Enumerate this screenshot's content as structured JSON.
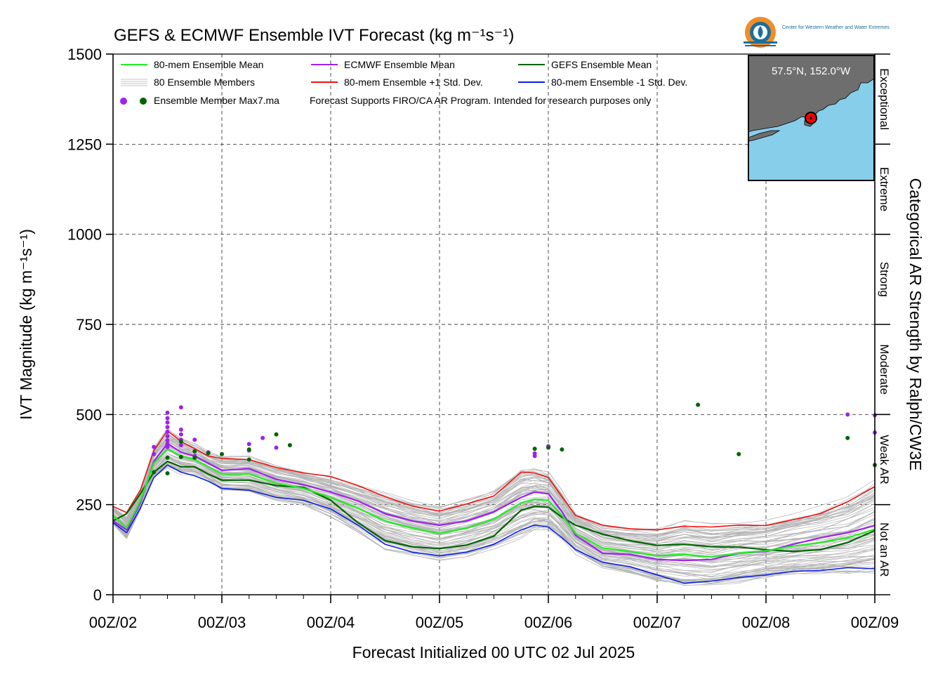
{
  "chart_data": {
    "type": "line",
    "title": "GEFS & ECMWF Ensemble IVT Forecast (kg m⁻¹s⁻¹)",
    "xlabel": "Forecast Initialized 00 UTC 02 Jul 2025",
    "ylabel": "IVT Magnitude (kg m⁻¹s⁻¹)",
    "right_label": "Categorical AR Strength by Ralph/CW3E",
    "x_unit": "days since 00Z/02",
    "xlim": [
      0,
      7
    ],
    "ylim": [
      0,
      1500
    ],
    "x_ticks": [
      0,
      1,
      2,
      3,
      4,
      5,
      6,
      7
    ],
    "x_tick_labels": [
      "00Z/02",
      "00Z/03",
      "00Z/04",
      "00Z/05",
      "00Z/06",
      "00Z/07",
      "00Z/08",
      "00Z/09"
    ],
    "y_ticks": [
      0,
      250,
      500,
      750,
      1000,
      1250,
      1500
    ],
    "y_tick_labels": [
      "0",
      "250",
      "500",
      "750",
      "1000",
      "1250",
      "1500"
    ],
    "grid": true,
    "categories": [
      {
        "label": "Not an AR",
        "range": [
          0,
          250
        ]
      },
      {
        "label": "Weak AR",
        "range": [
          250,
          500
        ]
      },
      {
        "label": "Moderate",
        "range": [
          500,
          750
        ]
      },
      {
        "label": "Strong",
        "range": [
          750,
          1000
        ]
      },
      {
        "label": "Extreme",
        "range": [
          1000,
          1250
        ]
      },
      {
        "label": "Exceptional",
        "range": [
          1250,
          1500
        ]
      }
    ],
    "legend": [
      {
        "label": "80-mem Ensemble Mean",
        "color": "#22ee22"
      },
      {
        "label": "ECMWF Ensemble Mean",
        "color": "#a020f0"
      },
      {
        "label": "GEFS Ensemble Mean",
        "color": "#006400"
      },
      {
        "label": "80 Ensemble Members",
        "color": "#b0b0b0"
      },
      {
        "label": "80-mem Ensemble +1 Std. Dev.",
        "color": "#ee1111"
      },
      {
        "label": "80-mem Ensemble -1 Std. Dev.",
        "color": "#0a1ee8"
      },
      {
        "label": "Ensemble Member Max7.ma",
        "color": "#a020f0"
      }
    ],
    "legend_note": "Forecast Supports FIRO/CA AR Program. Intended for research purposes only",
    "x": [
      0,
      0.125,
      0.25,
      0.375,
      0.5,
      0.625,
      0.75,
      0.875,
      1.0,
      1.25,
      1.5,
      1.75,
      2.0,
      2.25,
      2.5,
      2.75,
      3.0,
      3.25,
      3.5,
      3.75,
      3.875,
      4.0,
      4.125,
      4.25,
      4.5,
      4.75,
      5.0,
      5.25,
      5.5,
      5.75,
      6.0,
      6.25,
      6.5,
      6.75,
      7.0
    ],
    "series": [
      {
        "name": "80-mem Ensemble Mean",
        "color": "#22ee22",
        "width": 2.2,
        "values": [
          220,
          185,
          260,
          365,
          405,
          385,
          375,
          355,
          335,
          335,
          310,
          295,
          270,
          240,
          205,
          185,
          170,
          185,
          210,
          255,
          265,
          262,
          220,
          170,
          130,
          120,
          108,
          112,
          105,
          115,
          122,
          135,
          145,
          158,
          182
        ]
      },
      {
        "name": "ECMWF Ensemble Mean",
        "color": "#a020f0",
        "width": 2.2,
        "values": [
          205,
          180,
          255,
          370,
          420,
          395,
          385,
          365,
          345,
          350,
          320,
          305,
          285,
          260,
          225,
          205,
          193,
          205,
          230,
          270,
          285,
          280,
          230,
          165,
          115,
          112,
          98,
          95,
          98,
          115,
          120,
          140,
          158,
          172,
          192
        ]
      },
      {
        "name": "GEFS Ensemble Mean",
        "color": "#006400",
        "width": 2.2,
        "values": [
          205,
          225,
          280,
          340,
          370,
          355,
          355,
          335,
          318,
          318,
          303,
          298,
          262,
          200,
          150,
          133,
          128,
          138,
          163,
          235,
          245,
          243,
          215,
          193,
          168,
          150,
          137,
          140,
          133,
          132,
          125,
          120,
          125,
          145,
          178
        ]
      },
      {
        "name": "80-mem Ensemble +1 Std. Dev.",
        "color": "#ee1111",
        "width": 1.6,
        "values": [
          245,
          228,
          290,
          400,
          455,
          425,
          405,
          385,
          378,
          375,
          353,
          338,
          328,
          303,
          272,
          246,
          232,
          252,
          274,
          340,
          338,
          325,
          272,
          220,
          193,
          183,
          180,
          190,
          188,
          193,
          192,
          208,
          225,
          258,
          300
        ]
      },
      {
        "name": "80-mem Ensemble -1 Std. Dev.",
        "color": "#0a1ee8",
        "width": 1.6,
        "values": [
          200,
          172,
          240,
          325,
          360,
          340,
          330,
          315,
          295,
          290,
          270,
          262,
          238,
          193,
          140,
          118,
          108,
          118,
          140,
          180,
          193,
          188,
          158,
          125,
          90,
          78,
          55,
          32,
          38,
          48,
          55,
          65,
          67,
          75,
          72
        ]
      }
    ],
    "max_points": [
      {
        "color": "#a020f0",
        "x": 0.375,
        "y": 410
      },
      {
        "color": "#a020f0",
        "x": 0.375,
        "y": 390
      },
      {
        "color": "#a020f0",
        "x": 0.5,
        "y": 505
      },
      {
        "color": "#a020f0",
        "x": 0.5,
        "y": 490
      },
      {
        "color": "#a020f0",
        "x": 0.5,
        "y": 478
      },
      {
        "color": "#a020f0",
        "x": 0.5,
        "y": 465
      },
      {
        "color": "#a020f0",
        "x": 0.5,
        "y": 452
      },
      {
        "color": "#a020f0",
        "x": 0.5,
        "y": 440
      },
      {
        "color": "#a020f0",
        "x": 0.5,
        "y": 428
      },
      {
        "color": "#a020f0",
        "x": 0.5,
        "y": 418
      },
      {
        "color": "#a020f0",
        "x": 0.5,
        "y": 410
      },
      {
        "color": "#a020f0",
        "x": 0.625,
        "y": 520
      },
      {
        "color": "#a020f0",
        "x": 0.625,
        "y": 458
      },
      {
        "color": "#a020f0",
        "x": 0.625,
        "y": 445
      },
      {
        "color": "#a020f0",
        "x": 0.625,
        "y": 430
      },
      {
        "color": "#a020f0",
        "x": 0.625,
        "y": 415
      },
      {
        "color": "#a020f0",
        "x": 0.75,
        "y": 430
      },
      {
        "color": "#a020f0",
        "x": 0.75,
        "y": 385
      },
      {
        "color": "#a020f0",
        "x": 0.875,
        "y": 395
      },
      {
        "color": "#a020f0",
        "x": 1.25,
        "y": 418
      },
      {
        "color": "#a020f0",
        "x": 1.25,
        "y": 400
      },
      {
        "color": "#a020f0",
        "x": 1.375,
        "y": 435
      },
      {
        "color": "#a020f0",
        "x": 1.5,
        "y": 408
      },
      {
        "color": "#a020f0",
        "x": 3.875,
        "y": 392
      },
      {
        "color": "#a020f0",
        "x": 3.875,
        "y": 385
      },
      {
        "color": "#a020f0",
        "x": 4.0,
        "y": 412
      },
      {
        "color": "#a020f0",
        "x": 6.75,
        "y": 500
      },
      {
        "color": "#a020f0",
        "x": 7.0,
        "y": 498
      },
      {
        "color": "#a020f0",
        "x": 7.0,
        "y": 450
      },
      {
        "color": "#006400",
        "x": 0.375,
        "y": 340
      },
      {
        "color": "#006400",
        "x": 0.5,
        "y": 380
      },
      {
        "color": "#006400",
        "x": 0.5,
        "y": 337
      },
      {
        "color": "#006400",
        "x": 0.625,
        "y": 425
      },
      {
        "color": "#006400",
        "x": 0.625,
        "y": 382
      },
      {
        "color": "#006400",
        "x": 0.75,
        "y": 398
      },
      {
        "color": "#006400",
        "x": 0.75,
        "y": 380
      },
      {
        "color": "#006400",
        "x": 0.875,
        "y": 393
      },
      {
        "color": "#006400",
        "x": 1.0,
        "y": 390
      },
      {
        "color": "#006400",
        "x": 1.25,
        "y": 375
      },
      {
        "color": "#006400",
        "x": 1.25,
        "y": 403
      },
      {
        "color": "#006400",
        "x": 1.5,
        "y": 445
      },
      {
        "color": "#006400",
        "x": 1.625,
        "y": 415
      },
      {
        "color": "#006400",
        "x": 3.875,
        "y": 405
      },
      {
        "color": "#006400",
        "x": 4.0,
        "y": 408
      },
      {
        "color": "#006400",
        "x": 4.125,
        "y": 403
      },
      {
        "color": "#006400",
        "x": 5.375,
        "y": 527
      },
      {
        "color": "#006400",
        "x": 5.75,
        "y": 390
      },
      {
        "color": "#006400",
        "x": 6.75,
        "y": 435
      },
      {
        "color": "#006400",
        "x": 7.0,
        "y": 360
      }
    ],
    "member_count": 80,
    "member_spread_note": "80 ensemble member traces in light gray around the means"
  },
  "inset_map": {
    "location_label": "57.5°N, 152.0°W",
    "ocean_color": "#87ceeb",
    "land_color": "#6e6e6e",
    "marker_color": "#ff0000"
  },
  "logo": {
    "org_name": "Center for Western Weather and Water Extremes"
  }
}
